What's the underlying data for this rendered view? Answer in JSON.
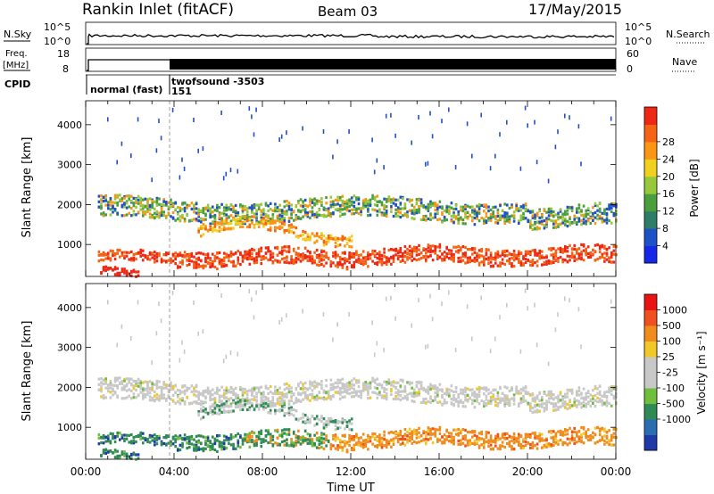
{
  "header": {
    "station": "Rankin Inlet (fitACF)",
    "beam": "Beam 03",
    "date": "17/May/2015"
  },
  "noise_panel": {
    "left_label": "N.Sky",
    "right_label": "N.Search",
    "ticks_left": [
      "10^5",
      "10^0"
    ],
    "ticks_right": [
      "10^5",
      "10^0"
    ]
  },
  "freq_panel": {
    "left_label_1": "Freq.",
    "left_label_2": "[MHz]",
    "right_label": "Nave",
    "ticks_left": [
      "18",
      "8"
    ],
    "ticks_right": [
      "60",
      "0"
    ]
  },
  "cpid_panel": {
    "label": "CPID",
    "mode_1": "normal (fast)",
    "mode_2": "twofsound -3503",
    "mode_2_id": "151"
  },
  "chart_data": [
    {
      "type": "heatmap",
      "name": "power",
      "ylabel": "Slant Range [km]",
      "xlabel": "",
      "y_ticks": [
        "1000",
        "2000",
        "3000",
        "4000"
      ],
      "ylim": [
        200,
        4600
      ],
      "colorbar_label": "Power [dB]",
      "colorbar_ticks": [
        "4",
        "8",
        "12",
        "16",
        "20",
        "24",
        "28"
      ],
      "colorbar_colors": [
        "#1428e6",
        "#1e50c8",
        "#2e7d68",
        "#4a9e3c",
        "#96c83c",
        "#f0d21e",
        "#fa9614",
        "#f56414",
        "#ee2814"
      ]
    },
    {
      "type": "heatmap",
      "name": "velocity",
      "ylabel": "Slant Range [km]",
      "xlabel": "Time UT",
      "y_ticks": [
        "1000",
        "2000",
        "3000",
        "4000"
      ],
      "ylim": [
        200,
        4600
      ],
      "x_ticks": [
        "00:00",
        "04:00",
        "08:00",
        "12:00",
        "16:00",
        "20:00",
        "00:00"
      ],
      "colorbar_label": "Velocity [m s⁻¹]",
      "colorbar_ticks": [
        "1000",
        "500",
        "100",
        "25",
        "-25",
        "-100",
        "-500",
        "-1000"
      ],
      "colorbar_colors": [
        "#1f3aa8",
        "#2a6db0",
        "#2f8a55",
        "#6fbe3e",
        "#c8c8c8",
        "#c8c8c8",
        "#f0c828",
        "#f08c1e",
        "#f0501e",
        "#e81414"
      ]
    }
  ]
}
